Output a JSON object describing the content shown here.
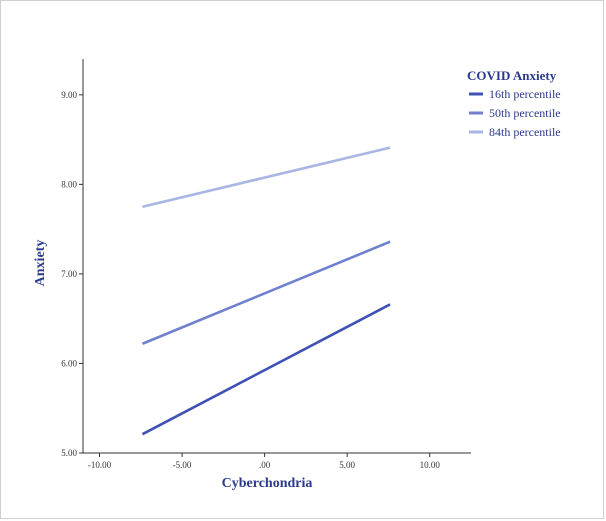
{
  "chart_data": {
    "type": "line",
    "xlabel": "Cyberchondria",
    "ylabel": "Anxiety",
    "xlim": [
      -11,
      12.5
    ],
    "ylim": [
      5.0,
      9.4
    ],
    "x_ticks": [
      "-10.00",
      "-5.00",
      ".00",
      "5.00",
      "10.00"
    ],
    "x_tick_values": [
      -10,
      -5,
      0,
      5,
      10
    ],
    "y_ticks": [
      "5.00",
      "6.00",
      "7.00",
      "8.00",
      "9.00"
    ],
    "y_tick_values": [
      5,
      6,
      7,
      8,
      9
    ],
    "grid": false,
    "legend": {
      "title": "COVID Anxiety",
      "placement": "top-right"
    },
    "series": [
      {
        "name": "16th percentile",
        "color": "#3f51b5",
        "x": [
          -7.4,
          7.6
        ],
        "y": [
          5.21,
          6.66
        ]
      },
      {
        "name": "50th percentile",
        "color": "#6f80cf",
        "x": [
          -7.4,
          7.6
        ],
        "y": [
          6.22,
          7.36
        ]
      },
      {
        "name": "84th percentile",
        "color": "#a9b6e3",
        "x": [
          -7.4,
          7.6
        ],
        "y": [
          7.75,
          8.41
        ]
      }
    ]
  }
}
